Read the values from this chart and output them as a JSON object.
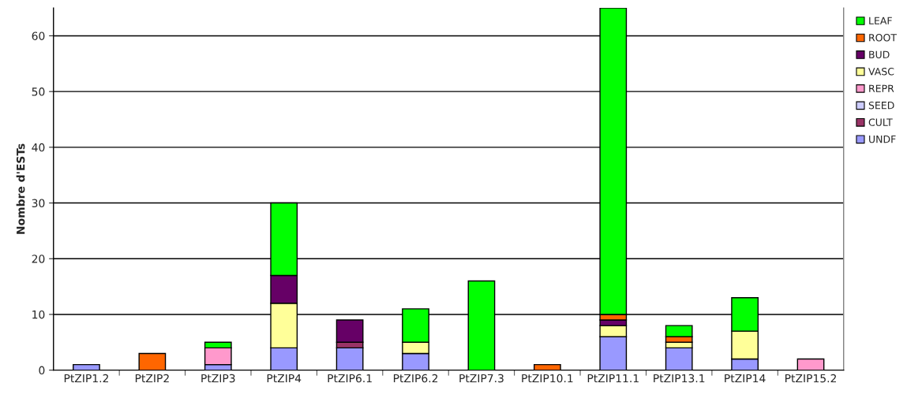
{
  "chart_data": {
    "type": "bar",
    "stacked": true,
    "ylabel": "Nombre d'ESTs",
    "categories": [
      "PtZIP1.2",
      "PtZIP2",
      "PtZIP3",
      "PtZIP4",
      "PtZIP6.1",
      "PtZIP6.2",
      "PtZIP7.3",
      "PtZIP10.1",
      "PtZIP11.1",
      "PtZIP13.1",
      "PtZIP14",
      "PtZIP15.2"
    ],
    "series": [
      {
        "name": "UNDF",
        "color": "#9999ff",
        "values": [
          1,
          null,
          1,
          4,
          4,
          3,
          null,
          null,
          6,
          4,
          2,
          null
        ]
      },
      {
        "name": "CULT",
        "color": "#993366",
        "values": [
          null,
          null,
          null,
          null,
          1,
          null,
          null,
          null,
          null,
          null,
          null,
          null
        ]
      },
      {
        "name": "SEED",
        "color": "#ccccff",
        "values": [
          null,
          null,
          null,
          null,
          null,
          null,
          null,
          null,
          null,
          null,
          null,
          null
        ]
      },
      {
        "name": "REPR",
        "color": "#ff99cc",
        "values": [
          null,
          null,
          3,
          null,
          null,
          null,
          null,
          null,
          null,
          null,
          null,
          2
        ]
      },
      {
        "name": "VASC",
        "color": "#ffff99",
        "values": [
          null,
          null,
          null,
          8,
          null,
          2,
          null,
          null,
          2,
          1,
          5,
          null
        ]
      },
      {
        "name": "BUD",
        "color": "#660066",
        "values": [
          null,
          null,
          null,
          5,
          4,
          null,
          null,
          null,
          1,
          null,
          null,
          null
        ]
      },
      {
        "name": "ROOT",
        "color": "#ff6600",
        "values": [
          null,
          3,
          null,
          null,
          null,
          null,
          null,
          1,
          1,
          1,
          null,
          null
        ]
      },
      {
        "name": "LEAF",
        "color": "#00ff00",
        "values": [
          null,
          null,
          1,
          13,
          null,
          6,
          16,
          null,
          55,
          2,
          6,
          null
        ]
      }
    ],
    "ylim": [
      0,
      65
    ],
    "yticks": [
      0,
      10,
      20,
      30,
      40,
      50,
      60
    ],
    "grid": "y",
    "legend": "right"
  }
}
